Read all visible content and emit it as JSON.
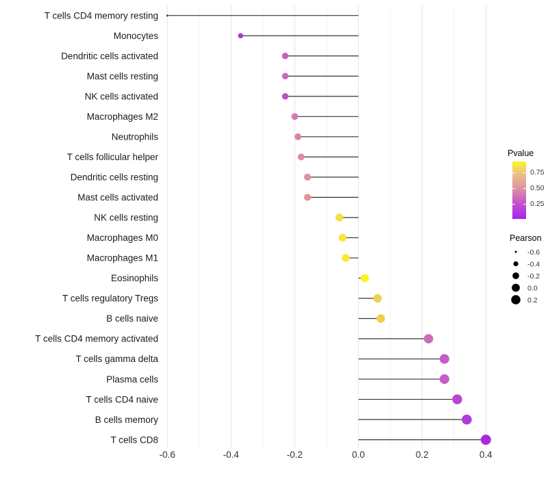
{
  "chart_data": {
    "type": "scatter",
    "variant": "lollipop",
    "title": "",
    "xlabel": "",
    "ylabel": "",
    "xlim": [
      -0.62,
      0.42
    ],
    "x_ticks": [
      -0.6,
      -0.4,
      -0.2,
      0.0,
      0.2,
      0.4
    ],
    "x_tick_labels": [
      "-0.6",
      "-0.4",
      "-0.2",
      "0.0",
      "0.2",
      "0.4"
    ],
    "grid": "vertical gridlines every 0.1, no horizontal grid, no axis lines",
    "stem_color": "#333333",
    "points": [
      {
        "label": "T cells CD4 memory resting",
        "pearson": -0.6,
        "color": "#7219AE"
      },
      {
        "label": "Monocytes",
        "pearson": -0.37,
        "color": "#A83BD4"
      },
      {
        "label": "Dendritic cells activated",
        "pearson": -0.23,
        "color": "#C55FBE"
      },
      {
        "label": "Mast cells resting",
        "pearson": -0.23,
        "color": "#CB68BB"
      },
      {
        "label": "NK cells activated",
        "pearson": -0.23,
        "color": "#BC4FC6"
      },
      {
        "label": "Macrophages M2",
        "pearson": -0.2,
        "color": "#D67BB2"
      },
      {
        "label": "Neutrophils",
        "pearson": -0.19,
        "color": "#D884AC"
      },
      {
        "label": "T cells follicular helper",
        "pearson": -0.18,
        "color": "#DD8DA2"
      },
      {
        "label": "Dendritic cells resting",
        "pearson": -0.16,
        "color": "#E0939B"
      },
      {
        "label": "Mast cells activated",
        "pearson": -0.16,
        "color": "#E09599"
      },
      {
        "label": "NK cells resting",
        "pearson": -0.06,
        "color": "#F2E23C"
      },
      {
        "label": "Macrophages M0",
        "pearson": -0.05,
        "color": "#F4E738"
      },
      {
        "label": "Macrophages M1",
        "pearson": -0.04,
        "color": "#F6EC31"
      },
      {
        "label": "Eosinophils",
        "pearson": 0.02,
        "color": "#F9F528"
      },
      {
        "label": "T cells regulatory  Tregs",
        "pearson": 0.06,
        "color": "#EDD04E"
      },
      {
        "label": "B cells naive",
        "pearson": 0.07,
        "color": "#EDD14D"
      },
      {
        "label": "T cells CD4 memory activated",
        "pearson": 0.22,
        "color": "#CE6CBC"
      },
      {
        "label": "T cells gamma delta",
        "pearson": 0.27,
        "color": "#C65AC8"
      },
      {
        "label": "Plasma cells",
        "pearson": 0.27,
        "color": "#C75BC7"
      },
      {
        "label": "T cells CD4 naive",
        "pearson": 0.31,
        "color": "#B846D3"
      },
      {
        "label": "B cells memory",
        "pearson": 0.34,
        "color": "#B13CDA"
      },
      {
        "label": "T cells CD8",
        "pearson": 0.4,
        "color": "#A62BDD"
      }
    ],
    "legend_pvalue": {
      "title": "Pvalue",
      "tick_labels": [
        "0.75",
        "0.50",
        "0.25"
      ],
      "gradient_bottom_to_top": [
        "#A226F0",
        "#C350CB",
        "#DF93A1",
        "#EDC57F",
        "#F9F42B"
      ],
      "position": "right"
    },
    "legend_pearson": {
      "title": "Pearson",
      "entries": [
        "-0.6",
        "-0.4",
        "-0.2",
        "0.0",
        "0.2"
      ],
      "dot_color": "#000000",
      "position": "right"
    }
  }
}
